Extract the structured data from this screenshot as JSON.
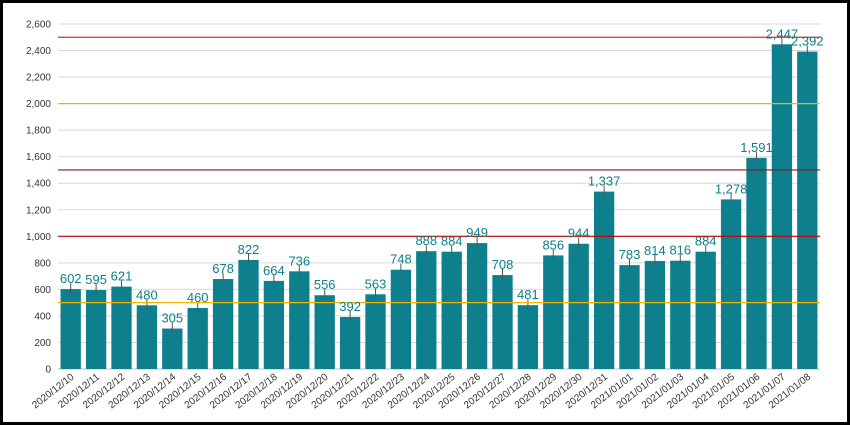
{
  "chart_data": {
    "type": "bar",
    "categories": [
      "2020/12/10",
      "2020/12/11",
      "2020/12/12",
      "2020/12/13",
      "2020/12/14",
      "2020/12/15",
      "2020/12/16",
      "2020/12/17",
      "2020/12/18",
      "2020/12/19",
      "2020/12/20",
      "2020/12/21",
      "2020/12/22",
      "2020/12/23",
      "2020/12/24",
      "2020/12/25",
      "2020/12/26",
      "2020/12/27",
      "2020/12/28",
      "2020/12/29",
      "2020/12/30",
      "2020/12/31",
      "2021/01/01",
      "2021/01/02",
      "2021/01/03",
      "2021/01/04",
      "2021/01/05",
      "2021/01/06",
      "2021/01/07",
      "2021/01/08"
    ],
    "values": [
      602,
      595,
      621,
      480,
      305,
      460,
      678,
      822,
      664,
      736,
      556,
      392,
      563,
      748,
      888,
      884,
      949,
      708,
      481,
      856,
      944,
      1337,
      783,
      814,
      816,
      884,
      1278,
      1591,
      2447,
      2392
    ],
    "data_labels": [
      "602",
      "595",
      "621",
      "480",
      "305",
      "460",
      "678",
      "822",
      "664",
      "736",
      "556",
      "392",
      "563",
      "748",
      "888",
      "884",
      "949",
      "708",
      "481",
      "856",
      "944",
      "1,337",
      "783",
      "814",
      "816",
      "884",
      "1,278",
      "1,591",
      "2,447",
      "2,392"
    ],
    "yticks": [
      0,
      200,
      400,
      600,
      800,
      1000,
      1200,
      1400,
      1600,
      1800,
      2000,
      2200,
      2400,
      2600
    ],
    "ytick_labels": [
      "0",
      "200",
      "400",
      "600",
      "800",
      "1,000",
      "1,200",
      "1,400",
      "1,600",
      "1,800",
      "2,000",
      "2,200",
      "2,400",
      "2,600"
    ],
    "ylim": [
      0,
      2600
    ],
    "reference_lines": [
      {
        "value": 500,
        "color": "#f2b400"
      },
      {
        "value": 1000,
        "color": "#c00000"
      },
      {
        "value": 1500,
        "color": "#8b1a1a"
      },
      {
        "value": 2000,
        "color": "#f2b400"
      },
      {
        "value": 2500,
        "color": "#e03020"
      }
    ],
    "title": "",
    "xlabel": "",
    "ylabel": "",
    "grid": true,
    "bar_color": "#0e7f8c",
    "label_color": "#0e7f8c",
    "grid_color": "#d9d9d9"
  }
}
